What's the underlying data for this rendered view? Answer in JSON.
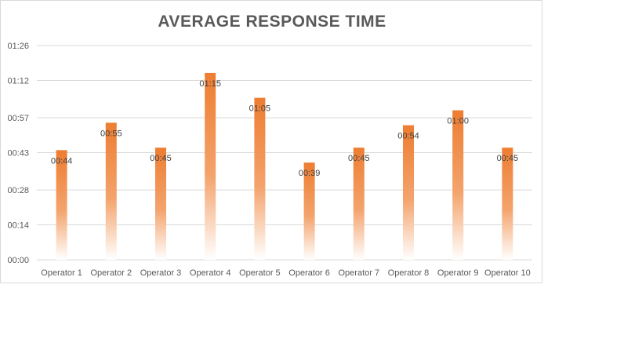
{
  "chart_data": {
    "type": "bar",
    "title": "AVERAGE RESPONSE TIME",
    "xlabel": "",
    "ylabel": "",
    "categories": [
      "Operator 1",
      "Operator 2",
      "Operator 3",
      "Operator 4",
      "Operator 5",
      "Operator 6",
      "Operator 7",
      "Operator 8",
      "Operator 9",
      "Operator 10"
    ],
    "values_seconds": [
      44,
      55,
      45,
      75,
      65,
      39,
      45,
      54,
      60,
      45
    ],
    "data_labels": [
      "00:44",
      "00:55",
      "00:45",
      "01:15",
      "01:05",
      "00:39",
      "00:45",
      "00:54",
      "01:00",
      "00:45"
    ],
    "y_ticks_seconds": [
      0,
      14,
      28,
      43,
      57,
      72,
      86
    ],
    "y_tick_labels": [
      "00:00",
      "00:14",
      "00:28",
      "00:43",
      "00:57",
      "01:12",
      "01:26"
    ],
    "ylim_seconds": [
      0,
      86
    ],
    "grid": true,
    "legend": "none",
    "colors": {
      "bar": "#ed7d31",
      "bar_fade": "#ffffff",
      "grid": "#d9d9d9",
      "text": "#595959"
    }
  }
}
